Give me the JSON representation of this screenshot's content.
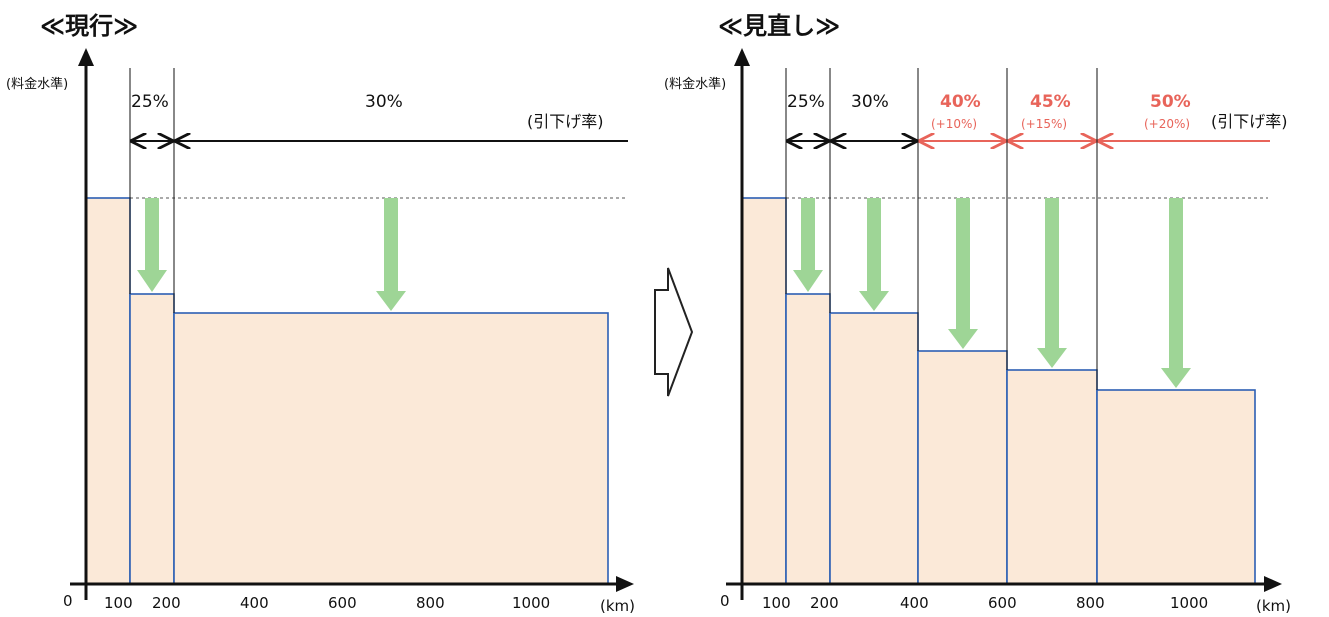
{
  "colors": {
    "bar_fill": "#fbe9d8",
    "bar_stroke": "#2c5fb4",
    "arrow_green": "#9ed596",
    "highlight_red": "#e8645a",
    "axis": "#111111"
  },
  "panels": [
    {
      "title": "≪現行≫",
      "ylabel": "(料金水準)",
      "xunit": "(km)",
      "rate_label": "(引下げ率)",
      "origin_label": "0",
      "x_ticks": [
        "100",
        "200",
        "400",
        "600",
        "800",
        "1000"
      ],
      "rates": [
        {
          "label": "25%",
          "from": 100,
          "to": 200
        },
        {
          "label": "30%",
          "from": 200,
          "to": 1200
        }
      ]
    },
    {
      "title": "≪見直し≫",
      "ylabel": "(料金水準)",
      "xunit": "(km)",
      "rate_label": "(引下げ率)",
      "origin_label": "0",
      "x_ticks": [
        "100",
        "200",
        "400",
        "600",
        "800",
        "1000"
      ],
      "rates": [
        {
          "label": "25%",
          "from": 100,
          "to": 200
        },
        {
          "label": "30%",
          "from": 200,
          "to": 400
        },
        {
          "label": "40%",
          "delta": "(+10%)",
          "from": 400,
          "to": 600,
          "highlight": true
        },
        {
          "label": "45%",
          "delta": "(+15%)",
          "from": 600,
          "to": 800,
          "highlight": true
        },
        {
          "label": "50%",
          "delta": "(+20%)",
          "from": 800,
          "to": 1200,
          "highlight": true
        }
      ]
    }
  ],
  "transition_arrow": "arrow-right-icon"
}
